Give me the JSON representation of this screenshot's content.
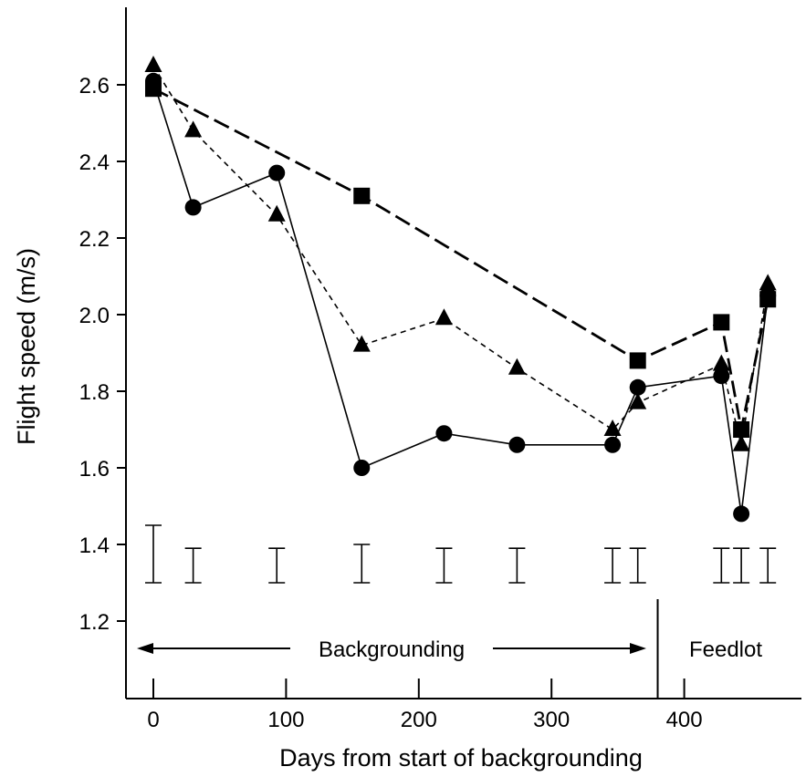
{
  "chart_data": {
    "type": "line",
    "xlabel": "Days from start of backgrounding",
    "ylabel": "Flight speed (m/s)",
    "xlim": [
      -25,
      485
    ],
    "ylim": [
      1.18,
      2.8
    ],
    "x_ticks": [
      0,
      100,
      200,
      300,
      400
    ],
    "x_tick_labels": [
      "0",
      "100",
      "200",
      "300",
      "400"
    ],
    "y_ticks": [
      1.2,
      1.4,
      1.6,
      1.8,
      2.0,
      2.2,
      2.4,
      2.6
    ],
    "y_tick_labels": [
      "1.2",
      "1.4",
      "1.6",
      "1.8",
      "2.0",
      "2.2",
      "2.4",
      "2.6"
    ],
    "grid": false,
    "series": [
      {
        "marker": "circle",
        "line_style": "solid",
        "points": [
          {
            "x": 0,
            "y": 2.61
          },
          {
            "x": 30,
            "y": 2.28
          },
          {
            "x": 93,
            "y": 2.37
          },
          {
            "x": 157,
            "y": 1.6
          },
          {
            "x": 219,
            "y": 1.69
          },
          {
            "x": 274,
            "y": 1.66
          },
          {
            "x": 346,
            "y": 1.66
          },
          {
            "x": 365,
            "y": 1.81
          },
          {
            "x": 428,
            "y": 1.84
          },
          {
            "x": 443,
            "y": 1.48
          },
          {
            "x": 463,
            "y": 2.05
          }
        ]
      },
      {
        "marker": "triangle",
        "line_style": "short-dash",
        "points": [
          {
            "x": 0,
            "y": 2.65
          },
          {
            "x": 30,
            "y": 2.48
          },
          {
            "x": 93,
            "y": 2.26
          },
          {
            "x": 157,
            "y": 1.92
          },
          {
            "x": 219,
            "y": 1.99
          },
          {
            "x": 274,
            "y": 1.86
          },
          {
            "x": 346,
            "y": 1.7
          },
          {
            "x": 365,
            "y": 1.77
          },
          {
            "x": 428,
            "y": 1.87
          },
          {
            "x": 443,
            "y": 1.66
          },
          {
            "x": 463,
            "y": 2.08
          }
        ]
      },
      {
        "marker": "square",
        "line_style": "long-dash",
        "points": [
          {
            "x": 0,
            "y": 2.59
          },
          {
            "x": 157,
            "y": 2.31
          },
          {
            "x": 365,
            "y": 1.88
          },
          {
            "x": 428,
            "y": 1.98
          },
          {
            "x": 443,
            "y": 1.7
          },
          {
            "x": 463,
            "y": 2.04
          }
        ]
      }
    ],
    "error_bars": [
      {
        "x": 0,
        "low": 1.3,
        "high": 1.45
      },
      {
        "x": 30,
        "low": 1.3,
        "high": 1.39
      },
      {
        "x": 93,
        "low": 1.3,
        "high": 1.39
      },
      {
        "x": 157,
        "low": 1.3,
        "high": 1.4
      },
      {
        "x": 219,
        "low": 1.3,
        "high": 1.39
      },
      {
        "x": 274,
        "low": 1.3,
        "high": 1.39
      },
      {
        "x": 346,
        "low": 1.3,
        "high": 1.39
      },
      {
        "x": 365,
        "low": 1.3,
        "high": 1.39
      },
      {
        "x": 428,
        "low": 1.3,
        "high": 1.39
      },
      {
        "x": 443,
        "low": 1.3,
        "high": 1.39
      },
      {
        "x": 463,
        "low": 1.3,
        "high": 1.39
      }
    ],
    "phase_divider_x": 380,
    "annotations": {
      "backgrounding": "Backgrounding",
      "feedlot": "Feedlot"
    }
  }
}
